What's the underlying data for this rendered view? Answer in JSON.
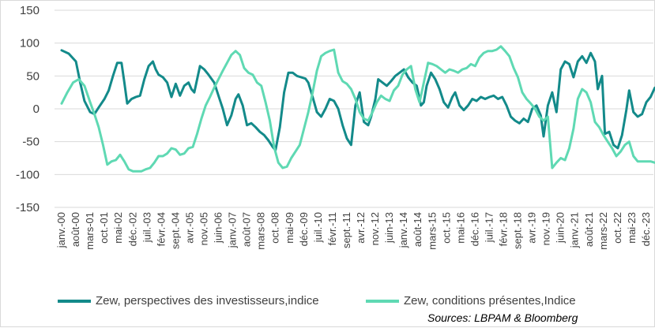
{
  "chart_data": {
    "type": "line",
    "title": "",
    "xlabel": "",
    "ylabel": "",
    "ylim": [
      -150,
      150
    ],
    "yticks": [
      150,
      100,
      50,
      0,
      -50,
      -100,
      -150
    ],
    "grid": "horizontal",
    "legend_position": "bottom",
    "x_labels": [
      "janv.-00",
      "août-00",
      "mars-01",
      "oct.-01",
      "mai-02",
      "déc.-02",
      "juil.-03",
      "févr.-04",
      "sept.-04",
      "avr.-05",
      "nov.-05",
      "juin-06",
      "janv.-07",
      "août-07",
      "mars-08",
      "oct.-08",
      "mai-09",
      "déc.-09",
      "juil.-10",
      "févr.-11",
      "sept.-11",
      "avr.-12",
      "nov.-12",
      "juin-13",
      "janv.-14",
      "août-14",
      "mars-15",
      "oct.-15",
      "mai-16",
      "déc.-16",
      "juil.-17",
      "févr.-18",
      "sept.-18",
      "avr.-19",
      "nov.-19",
      "juin-20",
      "janv.-21",
      "août-21",
      "mars-22",
      "oct.-22",
      "mai-23",
      "déc.-23"
    ],
    "series": [
      {
        "name": "Zew, perspectives des investisseurs,indice",
        "color": "#138a8a",
        "points": [
          [
            0,
            89
          ],
          [
            0.5,
            84
          ],
          [
            1,
            72
          ],
          [
            1.3,
            40
          ],
          [
            1.6,
            12
          ],
          [
            2,
            -5
          ],
          [
            2.3,
            -8
          ],
          [
            2.6,
            2
          ],
          [
            3,
            15
          ],
          [
            3.3,
            28
          ],
          [
            3.6,
            50
          ],
          [
            3.9,
            70
          ],
          [
            4.2,
            70
          ],
          [
            4.4,
            40
          ],
          [
            4.6,
            8
          ],
          [
            4.9,
            15
          ],
          [
            5.2,
            18
          ],
          [
            5.5,
            20
          ],
          [
            5.8,
            45
          ],
          [
            6.1,
            65
          ],
          [
            6.4,
            72
          ],
          [
            6.6,
            60
          ],
          [
            6.8,
            52
          ],
          [
            7.1,
            48
          ],
          [
            7.4,
            40
          ],
          [
            7.7,
            18
          ],
          [
            8,
            38
          ],
          [
            8.3,
            20
          ],
          [
            8.6,
            35
          ],
          [
            8.9,
            40
          ],
          [
            9.1,
            30
          ],
          [
            9.3,
            25
          ],
          [
            9.7,
            65
          ],
          [
            10,
            60
          ],
          [
            10.3,
            52
          ],
          [
            10.7,
            40
          ],
          [
            11,
            20
          ],
          [
            11.3,
            0
          ],
          [
            11.6,
            -25
          ],
          [
            11.9,
            -10
          ],
          [
            12.2,
            15
          ],
          [
            12.4,
            22
          ],
          [
            12.7,
            5
          ],
          [
            13,
            -25
          ],
          [
            13.3,
            -22
          ],
          [
            13.6,
            -28
          ],
          [
            13.9,
            -35
          ],
          [
            14.2,
            -40
          ],
          [
            14.5,
            -48
          ],
          [
            14.8,
            -58
          ],
          [
            15,
            -63
          ],
          [
            15.3,
            -28
          ],
          [
            15.6,
            25
          ],
          [
            15.9,
            55
          ],
          [
            16.2,
            55
          ],
          [
            16.5,
            50
          ],
          [
            16.8,
            48
          ],
          [
            17.1,
            46
          ],
          [
            17.3,
            40
          ],
          [
            17.6,
            18
          ],
          [
            17.9,
            -5
          ],
          [
            18.2,
            -12
          ],
          [
            18.5,
            0
          ],
          [
            18.8,
            15
          ],
          [
            19.1,
            12
          ],
          [
            19.4,
            0
          ],
          [
            19.7,
            -25
          ],
          [
            20,
            -45
          ],
          [
            20.3,
            -55
          ],
          [
            20.6,
            5
          ],
          [
            20.9,
            25
          ],
          [
            21.2,
            -20
          ],
          [
            21.5,
            -25
          ],
          [
            21.7,
            -12
          ],
          [
            22,
            15
          ],
          [
            22.2,
            45
          ],
          [
            22.5,
            40
          ],
          [
            22.8,
            35
          ],
          [
            23.1,
            42
          ],
          [
            23.4,
            50
          ],
          [
            23.7,
            55
          ],
          [
            24,
            60
          ],
          [
            24.3,
            48
          ],
          [
            24.6,
            40
          ],
          [
            24.9,
            35
          ],
          [
            25.2,
            5
          ],
          [
            25.4,
            10
          ],
          [
            25.6,
            35
          ],
          [
            25.9,
            55
          ],
          [
            26.2,
            45
          ],
          [
            26.5,
            30
          ],
          [
            26.8,
            10
          ],
          [
            27.1,
            2
          ],
          [
            27.4,
            18
          ],
          [
            27.6,
            25
          ],
          [
            27.9,
            5
          ],
          [
            28.2,
            -2
          ],
          [
            28.5,
            5
          ],
          [
            28.8,
            15
          ],
          [
            29.1,
            12
          ],
          [
            29.4,
            18
          ],
          [
            29.7,
            15
          ],
          [
            30,
            18
          ],
          [
            30.3,
            20
          ],
          [
            30.6,
            15
          ],
          [
            30.9,
            18
          ],
          [
            31.2,
            5
          ],
          [
            31.5,
            -12
          ],
          [
            31.8,
            -18
          ],
          [
            32.1,
            -22
          ],
          [
            32.4,
            -15
          ],
          [
            32.7,
            -20
          ],
          [
            33,
            0
          ],
          [
            33.3,
            5
          ],
          [
            33.6,
            -10
          ],
          [
            33.8,
            -42
          ],
          [
            34.1,
            5
          ],
          [
            34.4,
            25
          ],
          [
            34.7,
            -5
          ],
          [
            35,
            60
          ],
          [
            35.3,
            72
          ],
          [
            35.6,
            68
          ],
          [
            35.9,
            48
          ],
          [
            36.2,
            72
          ],
          [
            36.5,
            80
          ],
          [
            36.8,
            70
          ],
          [
            37.1,
            85
          ],
          [
            37.4,
            72
          ],
          [
            37.6,
            30
          ],
          [
            37.9,
            50
          ],
          [
            38.1,
            -38
          ],
          [
            38.4,
            -35
          ],
          [
            38.7,
            -55
          ],
          [
            39,
            -60
          ],
          [
            39.3,
            -40
          ],
          [
            39.6,
            -2
          ],
          [
            39.8,
            28
          ],
          [
            40.1,
            -5
          ],
          [
            40.4,
            -12
          ],
          [
            40.7,
            -8
          ],
          [
            41,
            10
          ],
          [
            41.3,
            18
          ],
          [
            41.6,
            32
          ]
        ]
      },
      {
        "name": "Zew,  conditions présentes,Indice",
        "color": "#5fd9b3",
        "points": [
          [
            0,
            8
          ],
          [
            0.4,
            25
          ],
          [
            0.8,
            40
          ],
          [
            1.2,
            45
          ],
          [
            1.6,
            35
          ],
          [
            2,
            10
          ],
          [
            2.3,
            -8
          ],
          [
            2.6,
            -28
          ],
          [
            2.9,
            -55
          ],
          [
            3.2,
            -85
          ],
          [
            3.5,
            -80
          ],
          [
            3.8,
            -78
          ],
          [
            4.1,
            -70
          ],
          [
            4.4,
            -80
          ],
          [
            4.7,
            -92
          ],
          [
            5,
            -95
          ],
          [
            5.3,
            -95
          ],
          [
            5.6,
            -95
          ],
          [
            5.9,
            -92
          ],
          [
            6.2,
            -90
          ],
          [
            6.5,
            -82
          ],
          [
            6.8,
            -72
          ],
          [
            7.1,
            -72
          ],
          [
            7.4,
            -68
          ],
          [
            7.7,
            -60
          ],
          [
            8,
            -62
          ],
          [
            8.3,
            -70
          ],
          [
            8.6,
            -68
          ],
          [
            8.9,
            -60
          ],
          [
            9.2,
            -58
          ],
          [
            9.5,
            -38
          ],
          [
            9.8,
            -15
          ],
          [
            10.1,
            5
          ],
          [
            10.4,
            18
          ],
          [
            10.7,
            32
          ],
          [
            11,
            45
          ],
          [
            11.3,
            58
          ],
          [
            11.6,
            70
          ],
          [
            11.9,
            82
          ],
          [
            12.2,
            88
          ],
          [
            12.5,
            82
          ],
          [
            12.8,
            62
          ],
          [
            13.1,
            55
          ],
          [
            13.4,
            52
          ],
          [
            13.7,
            40
          ],
          [
            14,
            35
          ],
          [
            14.3,
            10
          ],
          [
            14.6,
            -18
          ],
          [
            14.9,
            -58
          ],
          [
            15.2,
            -82
          ],
          [
            15.5,
            -90
          ],
          [
            15.8,
            -88
          ],
          [
            16.1,
            -75
          ],
          [
            16.4,
            -65
          ],
          [
            16.7,
            -55
          ],
          [
            17,
            -30
          ],
          [
            17.3,
            -5
          ],
          [
            17.6,
            25
          ],
          [
            17.9,
            58
          ],
          [
            18.2,
            80
          ],
          [
            18.5,
            85
          ],
          [
            18.8,
            88
          ],
          [
            19.1,
            90
          ],
          [
            19.4,
            55
          ],
          [
            19.7,
            42
          ],
          [
            20,
            38
          ],
          [
            20.3,
            30
          ],
          [
            20.6,
            15
          ],
          [
            20.9,
            -5
          ],
          [
            21.2,
            -15
          ],
          [
            21.5,
            -18
          ],
          [
            21.8,
            -5
          ],
          [
            22.1,
            10
          ],
          [
            22.4,
            20
          ],
          [
            22.7,
            15
          ],
          [
            23,
            12
          ],
          [
            23.3,
            28
          ],
          [
            23.6,
            35
          ],
          [
            23.9,
            52
          ],
          [
            24.2,
            60
          ],
          [
            24.5,
            65
          ],
          [
            24.8,
            30
          ],
          [
            25.1,
            10
          ],
          [
            25.4,
            40
          ],
          [
            25.7,
            70
          ],
          [
            26,
            68
          ],
          [
            26.3,
            65
          ],
          [
            26.6,
            60
          ],
          [
            26.9,
            55
          ],
          [
            27.2,
            60
          ],
          [
            27.5,
            58
          ],
          [
            27.8,
            55
          ],
          [
            28.1,
            60
          ],
          [
            28.4,
            62
          ],
          [
            28.7,
            68
          ],
          [
            29,
            65
          ],
          [
            29.3,
            78
          ],
          [
            29.6,
            85
          ],
          [
            29.9,
            88
          ],
          [
            30.2,
            88
          ],
          [
            30.5,
            90
          ],
          [
            30.8,
            95
          ],
          [
            31.1,
            88
          ],
          [
            31.4,
            80
          ],
          [
            31.7,
            62
          ],
          [
            32,
            48
          ],
          [
            32.3,
            25
          ],
          [
            32.6,
            15
          ],
          [
            32.9,
            8
          ],
          [
            33.2,
            0
          ],
          [
            33.5,
            -12
          ],
          [
            33.8,
            -18
          ],
          [
            34.1,
            -12
          ],
          [
            34.4,
            -90
          ],
          [
            34.7,
            -82
          ],
          [
            35,
            -75
          ],
          [
            35.3,
            -78
          ],
          [
            35.6,
            -60
          ],
          [
            35.9,
            -30
          ],
          [
            36.2,
            15
          ],
          [
            36.5,
            30
          ],
          [
            36.8,
            25
          ],
          [
            37.1,
            10
          ],
          [
            37.4,
            -20
          ],
          [
            37.7,
            -28
          ],
          [
            38,
            -40
          ],
          [
            38.3,
            -50
          ],
          [
            38.6,
            -60
          ],
          [
            38.9,
            -72
          ],
          [
            39.2,
            -65
          ],
          [
            39.5,
            -55
          ],
          [
            39.8,
            -50
          ],
          [
            40.1,
            -72
          ],
          [
            40.4,
            -80
          ],
          [
            40.7,
            -80
          ],
          [
            41,
            -80
          ],
          [
            41.3,
            -80
          ],
          [
            41.6,
            -82
          ]
        ]
      }
    ]
  },
  "legend": {
    "items": [
      {
        "label": "Zew, perspectives des investisseurs,indice",
        "color": "#138a8a"
      },
      {
        "label": "Zew,  conditions présentes,Indice",
        "color": "#5fd9b3"
      }
    ]
  },
  "source": "Sources: LBPAM & Bloomberg"
}
